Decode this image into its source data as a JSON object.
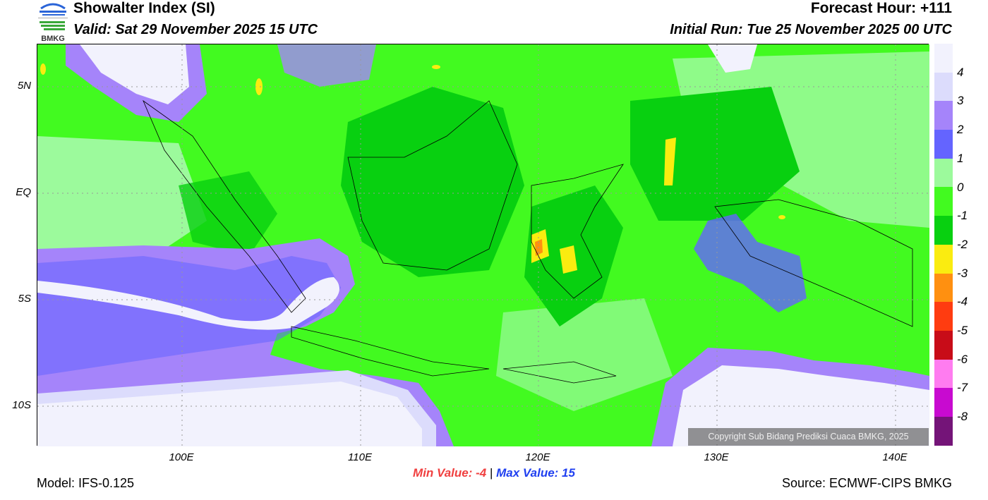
{
  "header": {
    "logo_text": "BMKG",
    "title": "Showalter Index (SI)",
    "valid": "Valid: Sat 29 November 2025 15 UTC",
    "forecast_hour": "Forecast Hour: +111",
    "initial_run": "Initial Run: Tue 25 November 2025 00 UTC"
  },
  "axes": {
    "lat_labels": [
      "5N",
      "EQ",
      "5S",
      "10S"
    ],
    "lon_labels": [
      "100E",
      "110E",
      "120E",
      "130E",
      "140E"
    ]
  },
  "colorbar": {
    "colors": [
      "#f2f2fd",
      "#dcdcfc",
      "#a584fa",
      "#6464ff",
      "#9cfa9c",
      "#42fa20",
      "#08d010",
      "#faec10",
      "#ff9010",
      "#ff3c10",
      "#c80c18",
      "#ff7cf0",
      "#c80ad0",
      "#741478"
    ],
    "labels": [
      "4",
      "3",
      "2",
      "1",
      "0",
      "-1",
      "-2",
      "-3",
      "-4",
      "-5",
      "-6",
      "-7",
      "-8"
    ]
  },
  "footer": {
    "min_label": "Min Value:  -4",
    "separator": "|",
    "max_label": "Max Value:  15",
    "model": "Model: IFS-0.125",
    "source": "Source: ECMWF-CIPS BMKG",
    "copyright": "Copyright Sub Bidang Prediksi Cuaca BMKG, 2025"
  }
}
